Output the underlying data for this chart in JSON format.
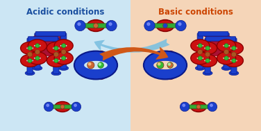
{
  "bg_left": "#cce6f4",
  "bg_right": "#f5d5b8",
  "title_left": "Acidic conditions",
  "title_right": "Basic conditions",
  "title_left_color": "#1a4fa0",
  "title_right_color": "#cc4400",
  "title_fontsize": 8.5,
  "arrow_left_color": "#7cc0e0",
  "arrow_right_color": "#d05818",
  "blue": "#1a3fcc",
  "dark_blue": "#0a1a8a",
  "red": "#cc1111",
  "dark_red": "#880000",
  "green": "#33bb33",
  "dark_green": "#226622",
  "brown": "#aa5522",
  "dark_brown": "#773311"
}
